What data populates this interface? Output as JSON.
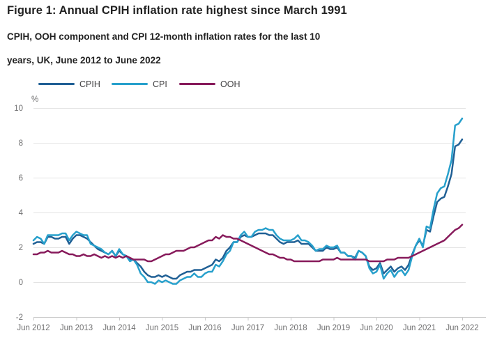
{
  "header": {
    "title": "Figure 1: Annual CPIH inflation rate highest since March 1991",
    "subtitle_lines": [
      "CPIH, OOH component and CPI 12-month inflation rates for the last 10",
      "years, UK, June 2012 to June 2022"
    ]
  },
  "chart_data": {
    "type": "line",
    "title": "Figure 1: Annual CPIH inflation rate highest since March 1991",
    "subtitle": "CPIH, OOH component and CPI 12-month inflation rates for the last 10 years, UK, June 2012 to June 2022",
    "ylabel": "%",
    "xlabel": "",
    "ylim": [
      -2,
      10
    ],
    "yticks": [
      -2,
      0,
      2,
      4,
      6,
      8,
      10
    ],
    "grid": "horizontal",
    "legend_position": "top",
    "x_unit": "month",
    "x_range": [
      "Jun 2012",
      "Jun 2022"
    ],
    "x_tick_labels": [
      "Jun 2012",
      "Jun 2013",
      "Jun 2014",
      "Jun 2015",
      "Jun 2016",
      "Jun 2017",
      "Jun 2018",
      "Jun 2019",
      "Jun 2020",
      "Jun 2021",
      "Jun 2022"
    ],
    "colors": {
      "gridline": "#e3e3e3",
      "axis": "#c9c9c9",
      "tick_label": "#707071"
    },
    "series": [
      {
        "name": "CPIH",
        "color": "#206095",
        "values": [
          2.2,
          2.3,
          2.3,
          2.2,
          2.6,
          2.6,
          2.5,
          2.5,
          2.6,
          2.6,
          2.2,
          2.5,
          2.7,
          2.7,
          2.6,
          2.5,
          2.3,
          2.1,
          1.9,
          1.8,
          1.7,
          1.6,
          1.8,
          1.5,
          1.8,
          1.6,
          1.5,
          1.3,
          1.3,
          1.1,
          0.9,
          0.6,
          0.4,
          0.3,
          0.3,
          0.4,
          0.3,
          0.4,
          0.3,
          0.2,
          0.2,
          0.4,
          0.5,
          0.6,
          0.6,
          0.7,
          0.7,
          0.7,
          0.8,
          0.9,
          1.0,
          1.3,
          1.2,
          1.4,
          1.8,
          2.0,
          2.3,
          2.3,
          2.6,
          2.7,
          2.6,
          2.6,
          2.7,
          2.8,
          2.8,
          2.8,
          2.7,
          2.7,
          2.5,
          2.3,
          2.2,
          2.3,
          2.3,
          2.3,
          2.4,
          2.2,
          2.2,
          2.2,
          2.0,
          1.8,
          1.8,
          1.8,
          2.0,
          1.9,
          1.9,
          2.0,
          1.7,
          1.7,
          1.5,
          1.5,
          1.4,
          1.8,
          1.7,
          1.5,
          0.9,
          0.7,
          0.8,
          1.1,
          0.5,
          0.7,
          0.9,
          0.6,
          0.8,
          0.9,
          0.7,
          1.0,
          1.6,
          2.1,
          2.4,
          2.1,
          3.0,
          2.9,
          3.8,
          4.6,
          4.8,
          4.9,
          5.5,
          6.2,
          7.8,
          7.9,
          8.2
        ]
      },
      {
        "name": "CPI",
        "color": "#27a0cc",
        "values": [
          2.4,
          2.6,
          2.5,
          2.2,
          2.7,
          2.7,
          2.7,
          2.7,
          2.8,
          2.8,
          2.4,
          2.7,
          2.9,
          2.8,
          2.7,
          2.7,
          2.2,
          2.1,
          2.0,
          1.9,
          1.7,
          1.6,
          1.8,
          1.5,
          1.9,
          1.6,
          1.5,
          1.2,
          1.3,
          1.0,
          0.5,
          0.3,
          0.0,
          0.0,
          -0.1,
          0.1,
          0.0,
          0.1,
          0.0,
          -0.1,
          -0.1,
          0.1,
          0.2,
          0.3,
          0.3,
          0.5,
          0.3,
          0.3,
          0.5,
          0.6,
          0.6,
          1.0,
          0.9,
          1.2,
          1.6,
          1.8,
          2.3,
          2.3,
          2.7,
          2.9,
          2.6,
          2.6,
          2.9,
          3.0,
          3.0,
          3.1,
          3.0,
          3.0,
          2.7,
          2.5,
          2.4,
          2.4,
          2.4,
          2.5,
          2.7,
          2.4,
          2.4,
          2.3,
          2.1,
          1.8,
          1.9,
          1.9,
          2.1,
          2.0,
          2.0,
          2.1,
          1.7,
          1.7,
          1.5,
          1.5,
          1.3,
          1.8,
          1.7,
          1.5,
          0.8,
          0.5,
          0.6,
          1.0,
          0.2,
          0.5,
          0.7,
          0.3,
          0.6,
          0.7,
          0.4,
          0.7,
          1.5,
          2.1,
          2.5,
          2.0,
          3.2,
          3.1,
          4.2,
          5.1,
          5.4,
          5.5,
          6.2,
          7.0,
          9.0,
          9.1,
          9.4
        ]
      },
      {
        "name": "OOH",
        "color": "#871a5b",
        "values": [
          1.6,
          1.6,
          1.7,
          1.7,
          1.8,
          1.7,
          1.7,
          1.7,
          1.8,
          1.7,
          1.6,
          1.6,
          1.5,
          1.5,
          1.6,
          1.5,
          1.5,
          1.6,
          1.5,
          1.4,
          1.5,
          1.4,
          1.5,
          1.4,
          1.5,
          1.4,
          1.5,
          1.4,
          1.3,
          1.3,
          1.3,
          1.3,
          1.2,
          1.2,
          1.3,
          1.4,
          1.5,
          1.6,
          1.6,
          1.7,
          1.8,
          1.8,
          1.8,
          1.9,
          2.0,
          2.0,
          2.1,
          2.2,
          2.3,
          2.4,
          2.4,
          2.6,
          2.5,
          2.7,
          2.6,
          2.6,
          2.5,
          2.5,
          2.4,
          2.3,
          2.2,
          2.1,
          2.0,
          1.9,
          1.8,
          1.7,
          1.6,
          1.6,
          1.5,
          1.4,
          1.4,
          1.3,
          1.3,
          1.2,
          1.2,
          1.2,
          1.2,
          1.2,
          1.2,
          1.2,
          1.2,
          1.3,
          1.3,
          1.3,
          1.3,
          1.4,
          1.3,
          1.3,
          1.3,
          1.3,
          1.3,
          1.3,
          1.3,
          1.3,
          1.2,
          1.2,
          1.2,
          1.2,
          1.2,
          1.3,
          1.3,
          1.3,
          1.4,
          1.4,
          1.4,
          1.4,
          1.5,
          1.6,
          1.7,
          1.8,
          1.9,
          2.0,
          2.1,
          2.2,
          2.3,
          2.4,
          2.6,
          2.8,
          3.0,
          3.1,
          3.3
        ]
      }
    ]
  }
}
